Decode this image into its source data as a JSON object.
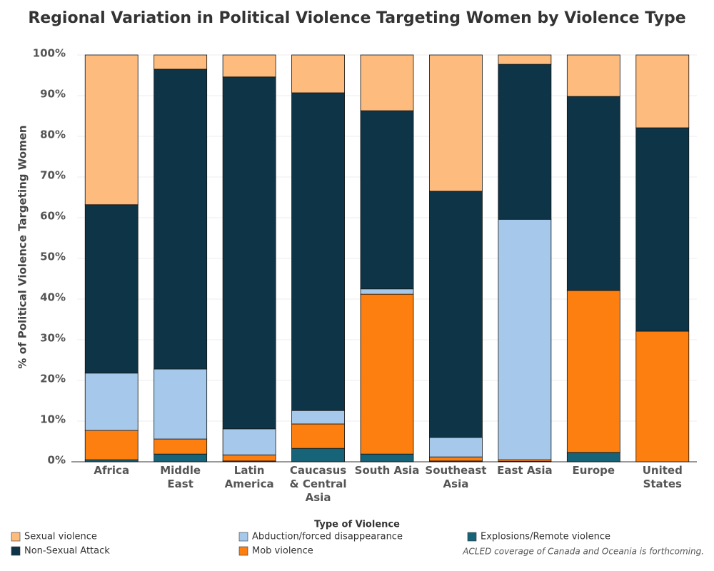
{
  "chart_data": {
    "type": "stacked_bar",
    "title": "Regional Variation in Political Violence Targeting Women by Violence Type",
    "y_label": "% of Political Violence Targeting Women",
    "legend_title": "Type of Violence",
    "note": "ACLED coverage of Canada and Oceania is forthcoming.",
    "categories": [
      "Africa",
      "Middle East",
      "Latin America",
      "Caucasus & Central Asia",
      "South Asia",
      "Southeast Asia",
      "East Asia",
      "Europe",
      "United States"
    ],
    "series": [
      {
        "name": "Explosions/Remote violence",
        "color": "#176479",
        "values": [
          0.5,
          1.9,
          0.2,
          3.3,
          1.9,
          0.2,
          0.1,
          2.3,
          0
        ]
      },
      {
        "name": "Mob violence",
        "color": "#fd7f0f",
        "values": [
          7.2,
          3.7,
          1.5,
          6.0,
          39.3,
          1.0,
          0.4,
          39.8,
          32.1
        ]
      },
      {
        "name": "Abduction/forced disappearance",
        "color": "#a6c8ea",
        "values": [
          14.1,
          17.2,
          6.4,
          3.3,
          1.3,
          4.8,
          59.1,
          0,
          0
        ]
      },
      {
        "name": "Non-Sexual Attack",
        "color": "#0d3547",
        "values": [
          41.4,
          73.7,
          86.5,
          78.1,
          43.8,
          60.5,
          38.1,
          47.7,
          50.0
        ]
      },
      {
        "name": "Sexual violence",
        "color": "#fdbb7e",
        "values": [
          36.8,
          3.5,
          5.4,
          9.3,
          13.7,
          33.5,
          2.3,
          10.2,
          17.9
        ]
      }
    ],
    "ylim": [
      0,
      100
    ],
    "yticks": [
      {
        "value": 0,
        "label": "0%"
      },
      {
        "value": 10,
        "label": "10%"
      },
      {
        "value": 20,
        "label": "20%"
      },
      {
        "value": 30,
        "label": "30%"
      },
      {
        "value": 40,
        "label": "40%"
      },
      {
        "value": 50,
        "label": "50%"
      },
      {
        "value": 60,
        "label": "60%"
      },
      {
        "value": 70,
        "label": "70%"
      },
      {
        "value": 80,
        "label": "80%"
      },
      {
        "value": 90,
        "label": "90%"
      },
      {
        "value": 100,
        "label": "100%"
      }
    ],
    "grid": true
  }
}
